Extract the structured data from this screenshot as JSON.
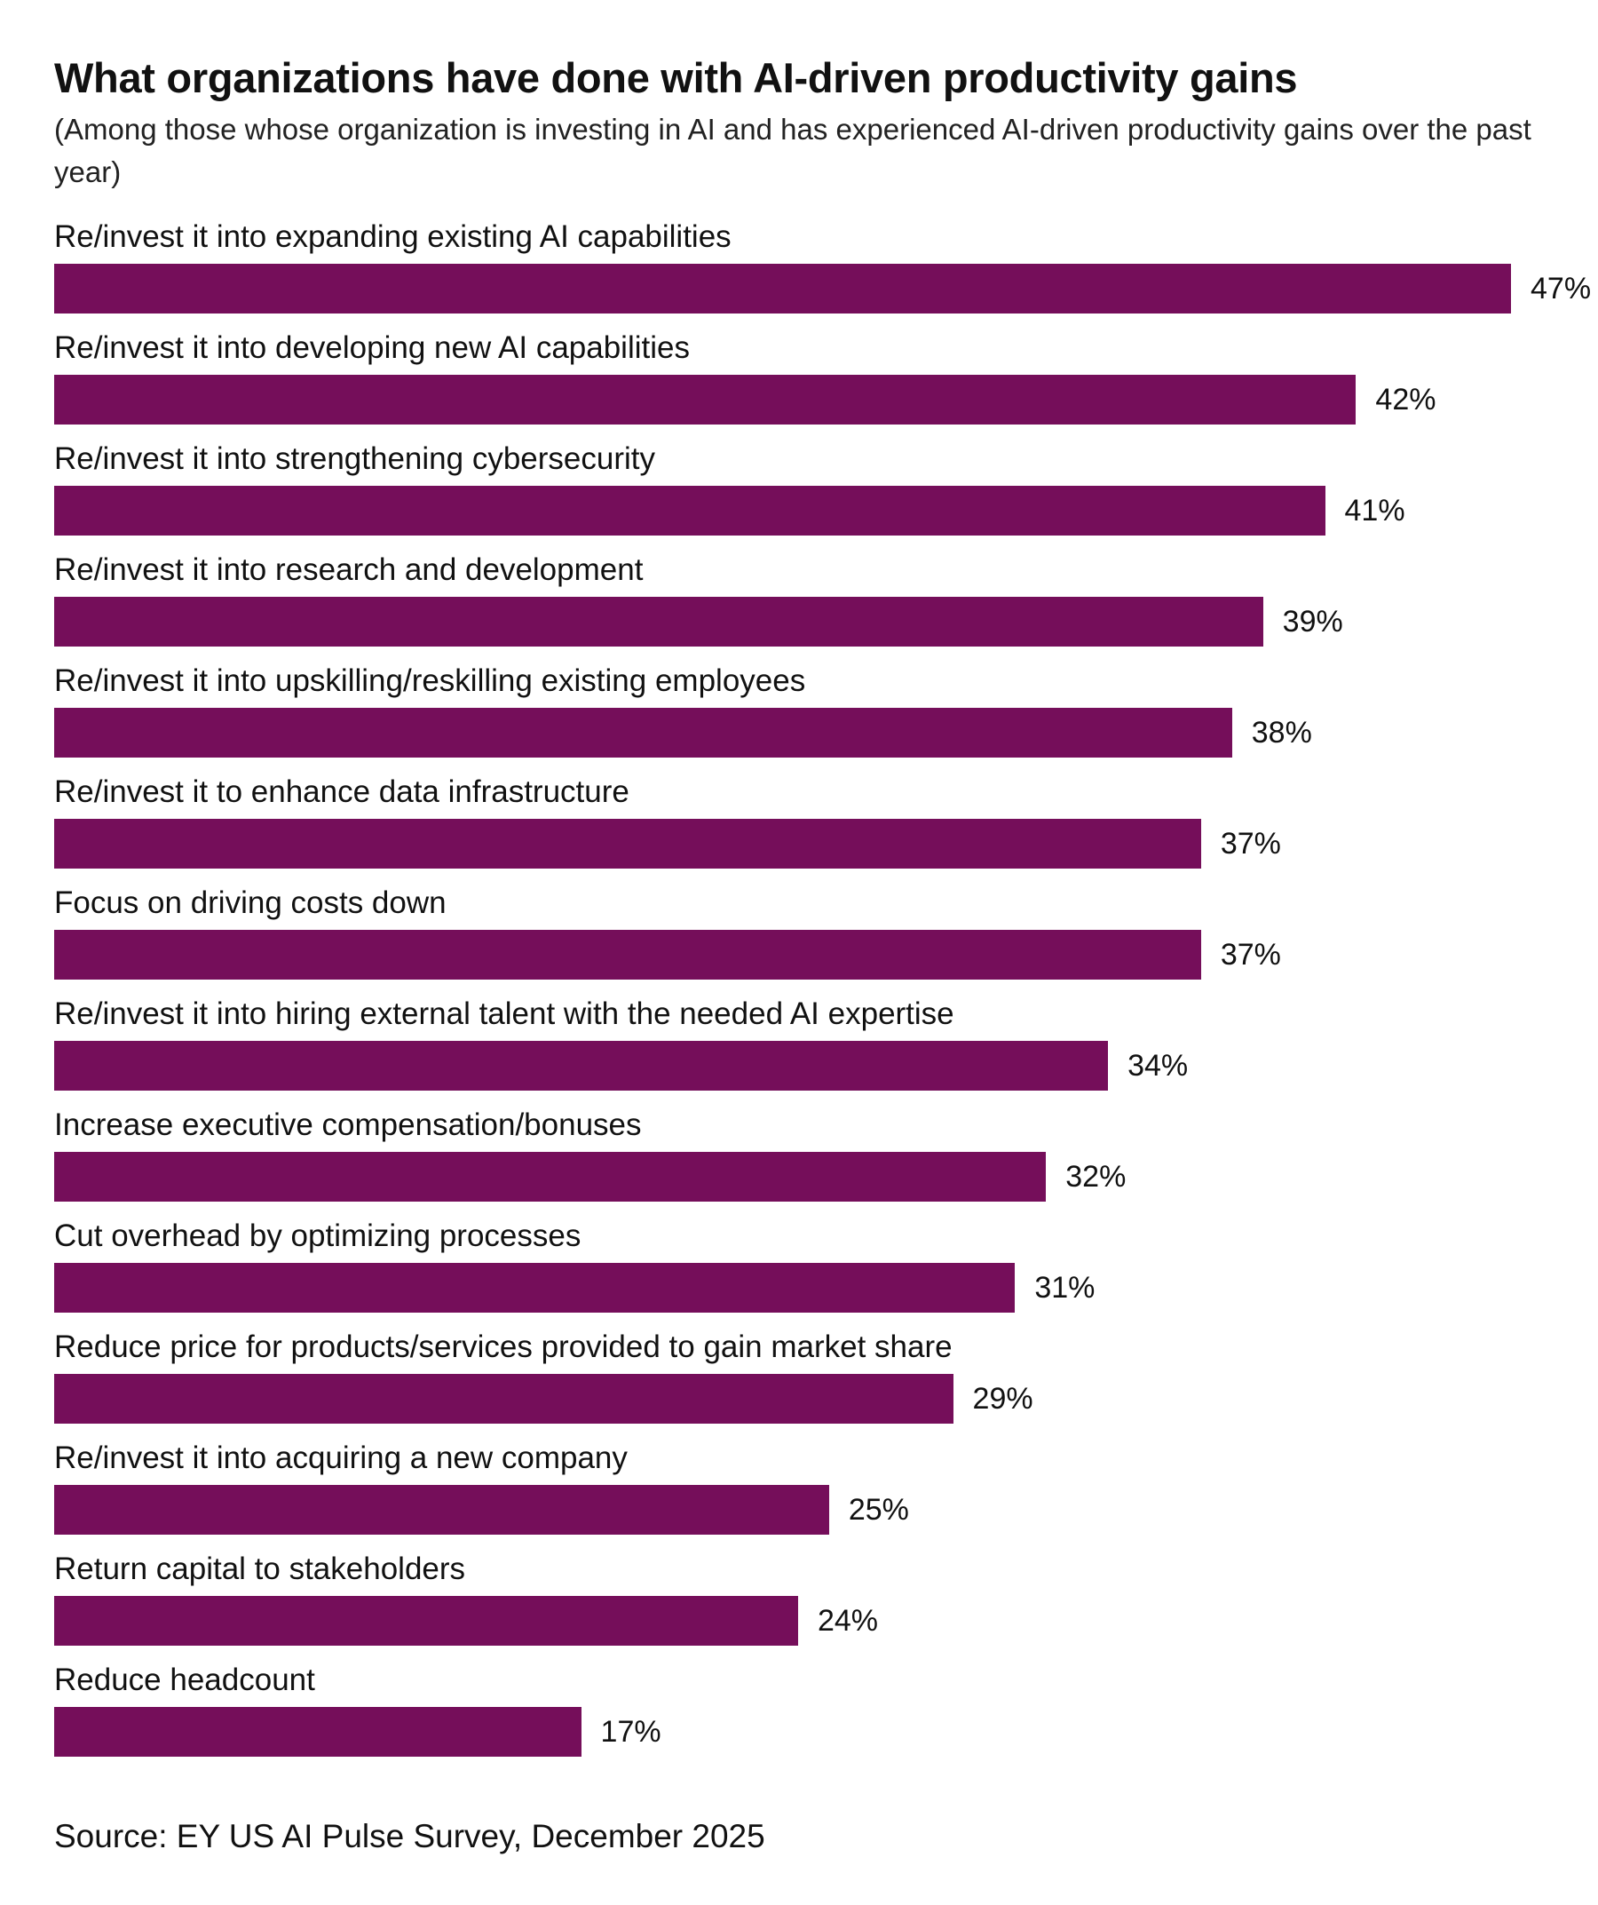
{
  "chart_data": {
    "type": "bar",
    "orientation": "horizontal",
    "title": "What organizations have done with AI-driven productivity gains",
    "subtitle": "(Among those whose organization is investing in AI and has experienced AI-driven productivity gains over the past year)",
    "categories": [
      "Re/invest it into expanding existing AI capabilities",
      "Re/invest it into developing new AI capabilities",
      "Re/invest it into strengthening cybersecurity",
      "Re/invest it into research and development",
      "Re/invest it into upskilling/reskilling existing employees",
      "Re/invest it to enhance data infrastructure",
      "Focus on driving costs down",
      "Re/invest it into hiring external talent with the needed AI expertise",
      "Increase executive compensation/bonuses",
      "Cut overhead by optimizing processes",
      "Reduce price for products/services provided to gain market share",
      "Re/invest it into acquiring a new company",
      "Return capital to stakeholders",
      "Reduce headcount"
    ],
    "values": [
      47,
      42,
      41,
      39,
      38,
      37,
      37,
      34,
      32,
      31,
      29,
      25,
      24,
      17
    ],
    "value_labels": [
      "47%",
      "42%",
      "41%",
      "39%",
      "38%",
      "37%",
      "37%",
      "34%",
      "32%",
      "31%",
      "29%",
      "25%",
      "24%",
      "17%"
    ],
    "unit": "%",
    "bar_color": "#750E5A",
    "grid": false,
    "legend": "none",
    "source": "Source: EY US AI Pulse Survey, December 2025"
  }
}
